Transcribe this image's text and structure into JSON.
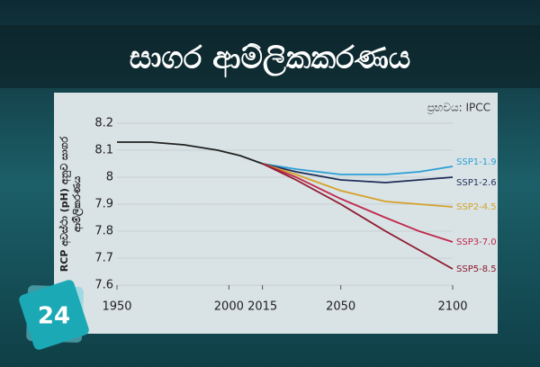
{
  "chart_data": {
    "type": "line",
    "title": "සාගර ආම්ලිකකරණය",
    "source": "ප්‍රභවය: IPCC",
    "ylabel": [
      "RCP අවස්ථා (pH) අනුව සාගර",
      "ආම්ලිකරණය"
    ],
    "badge": "24",
    "x": [
      1950,
      1965,
      1980,
      1995,
      2005,
      2015,
      2030,
      2050,
      2070,
      2085,
      2100
    ],
    "xlim": [
      1950,
      2100
    ],
    "xticks": [
      1950,
      2000,
      2015,
      2050,
      2100
    ],
    "ylim": [
      7.6,
      8.2
    ],
    "yticks": [
      7.6,
      7.7,
      7.8,
      7.9,
      8.0,
      8.1,
      8.2
    ],
    "grid": true,
    "series": [
      {
        "color": "#222222",
        "values": [
          8.13,
          8.13,
          8.12,
          8.1,
          8.08,
          8.05,
          null,
          null,
          null,
          null,
          null
        ]
      },
      {
        "name": "SSP1-1.9",
        "color": "#2a9fd6",
        "values": [
          null,
          null,
          null,
          null,
          null,
          8.05,
          8.03,
          8.01,
          8.01,
          8.02,
          8.04
        ]
      },
      {
        "name": "SSP1-2.6",
        "color": "#1f2d5a",
        "values": [
          null,
          null,
          null,
          null,
          null,
          8.05,
          8.02,
          7.99,
          7.98,
          7.99,
          8.0
        ]
      },
      {
        "name": "SSP2-4.5",
        "color": "#d4a22a",
        "values": [
          null,
          null,
          null,
          null,
          null,
          8.05,
          8.01,
          7.95,
          7.91,
          7.9,
          7.89
        ]
      },
      {
        "name": "SSP3-7.0",
        "color": "#c0284a",
        "values": [
          null,
          null,
          null,
          null,
          null,
          8.05,
          8.0,
          7.92,
          7.85,
          7.8,
          7.76
        ]
      },
      {
        "name": "SSP5-8.5",
        "color": "#8e1a2e",
        "values": [
          null,
          null,
          null,
          null,
          null,
          8.05,
          7.99,
          7.9,
          7.8,
          7.73,
          7.66
        ]
      }
    ]
  }
}
